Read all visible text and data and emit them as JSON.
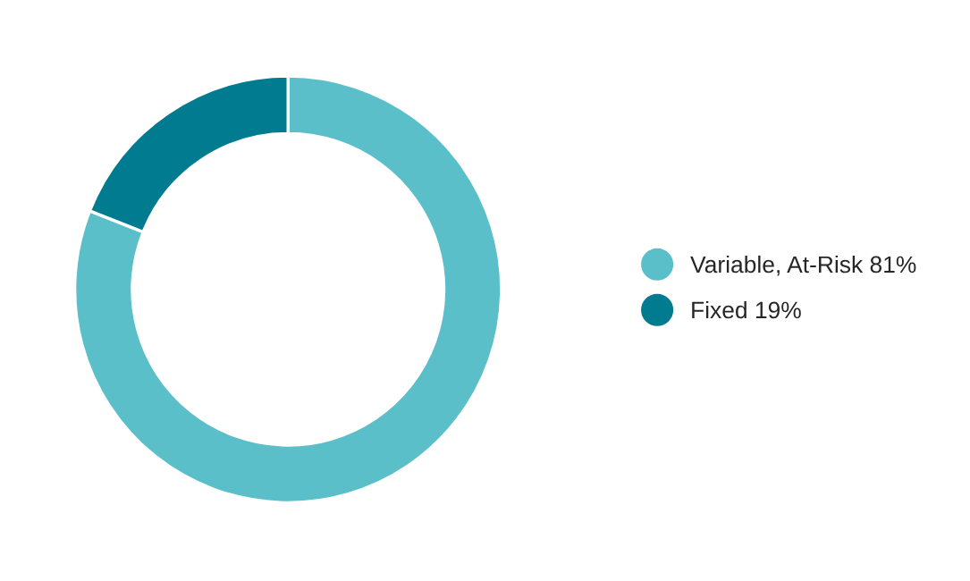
{
  "chart_data": {
    "type": "donut",
    "categories": [
      "Variable, At-Risk",
      "Fixed"
    ],
    "values": [
      81,
      19
    ],
    "value_labels": [
      "81%",
      "19%"
    ],
    "colors": [
      "#5bbfca",
      "#007b8f"
    ],
    "legend": "right"
  }
}
